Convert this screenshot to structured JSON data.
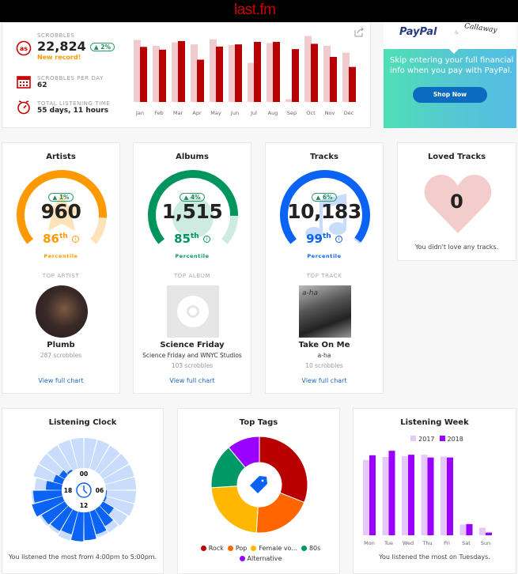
{
  "header": {
    "logo": "last.fm"
  },
  "summary": {
    "scrobbles": {
      "label": "Scrobbles",
      "value": "22,824",
      "change": "▲ 2%",
      "note": "New record!"
    },
    "per_day": {
      "label": "Scrobbles per day",
      "value": "62"
    },
    "time": {
      "label": "Total listening time",
      "value": "55 days, 11 hours"
    }
  },
  "chart_data": [
    {
      "type": "bar",
      "title": "",
      "categories": [
        "Jan",
        "Feb",
        "Mar",
        "Apr",
        "May",
        "Jun",
        "Jul",
        "Aug",
        "Sep",
        "Oct",
        "Nov",
        "Dec"
      ],
      "series": [
        {
          "values": [
            2230,
            2020,
            2140,
            2070,
            2250,
            2050,
            1410,
            2120,
            100,
            2370,
            2020,
            1770
          ],
          "color": "#f0cacc"
        },
        {
          "values": [
            1980,
            1880,
            2190,
            1520,
            1990,
            2070,
            2160,
            2160,
            1900,
            2090,
            1620,
            1260
          ],
          "color": "#b90000"
        }
      ]
    },
    {
      "type": "radial-bar",
      "title": "Listening Clock",
      "categories": [
        "00",
        "01",
        "02",
        "03",
        "04",
        "05",
        "06",
        "07",
        "08",
        "09",
        "10",
        "11",
        "12",
        "13",
        "14",
        "15",
        "16",
        "17",
        "18",
        "19",
        "20",
        "21",
        "22",
        "23"
      ],
      "series": [
        {
          "values": [
            0.95,
            0.95,
            0.93,
            0.95,
            0.95,
            0.95,
            0.95,
            0.95,
            0.9,
            0.85,
            0.85,
            0.85,
            0.9,
            0.95,
            0.9,
            0.92,
            0.95,
            0.95,
            0.85,
            0.95,
            0.95,
            0.95,
            0.95,
            0.95
          ],
          "color": "#c9dcfb"
        },
        {
          "values": [
            0,
            0,
            0,
            0,
            0,
            0,
            0.03,
            0.05,
            0.4,
            0.62,
            0.75,
            0.88,
            0.92,
            0.75,
            0.8,
            0.85,
            1.0,
            0.9,
            0.5,
            0.3,
            0.2,
            0.06,
            0,
            0
          ],
          "color": "#0a63f5"
        }
      ],
      "axis_labels": [
        "00",
        "06",
        "12",
        "18"
      ],
      "caption": "You listened the most from 4:00pm to 5:00pm."
    },
    {
      "type": "pie",
      "title": "Top Tags",
      "categories": [
        "Rock",
        "Pop",
        "Female vo...",
        "80s",
        "Alternative"
      ],
      "values": [
        31,
        20,
        23,
        15,
        11
      ],
      "colors": [
        "#b90000",
        "#ff6600",
        "#ffb700",
        "#009966",
        "#9900ff"
      ]
    },
    {
      "type": "bar",
      "title": "Listening Week",
      "categories": [
        "Mon",
        "Tue",
        "Wed",
        "Thu",
        "Fri",
        "Sat",
        "Sun"
      ],
      "series": [
        {
          "name": "2017",
          "values": [
            303,
            315,
            318,
            324,
            317,
            43,
            30
          ],
          "color": "#e6c8fb"
        },
        {
          "name": "2018",
          "values": [
            322,
            340,
            324,
            313,
            313,
            45,
            11
          ],
          "color": "#9900ff"
        }
      ],
      "caption": "You listened the most on Tuesdays."
    }
  ],
  "cards": [
    {
      "title": "Artists",
      "value": "960",
      "change": "▲ 1%",
      "percentile": 86,
      "pct_label": "86",
      "suffix": "th",
      "pct_word": "Percentile",
      "color": "#ff9900",
      "light": "#ffe3b8",
      "top_label": "Top Artist",
      "top_name": "Plumb",
      "top_sub": "",
      "top_count": "287 scrobbles",
      "link": "View full chart"
    },
    {
      "title": "Albums",
      "value": "1,515",
      "change": "▲ 4%",
      "percentile": 85,
      "pct_label": "85",
      "suffix": "th",
      "pct_word": "Percentile",
      "color": "#00955c",
      "light": "#cdebe0",
      "top_label": "Top Album",
      "top_name": "Science Friday",
      "top_sub": "Science Friday and WNYC Studios",
      "top_count": "103 scrobbles",
      "link": "View full chart"
    },
    {
      "title": "Tracks",
      "value": "10,183",
      "change": "▲ 6%",
      "percentile": 99,
      "pct_label": "99",
      "suffix": "th",
      "pct_word": "Percentile",
      "color": "#0a63f5",
      "light": "#c9dcfb",
      "top_label": "Top Track",
      "top_name": "Take On Me",
      "top_sub": "a-ha",
      "top_count": "10 scrobbles",
      "link": "View full chart"
    }
  ],
  "loved": {
    "title": "Loved Tracks",
    "value": "0",
    "caption": "You didn't love any tracks."
  },
  "ad": {
    "brand1": "PayPal",
    "amp": "&",
    "brand2": "Callaway",
    "text": "Skip entering your full financial info when you pay with PayPal.",
    "button": "Shop Now",
    "album_art_text": "a-ha"
  }
}
